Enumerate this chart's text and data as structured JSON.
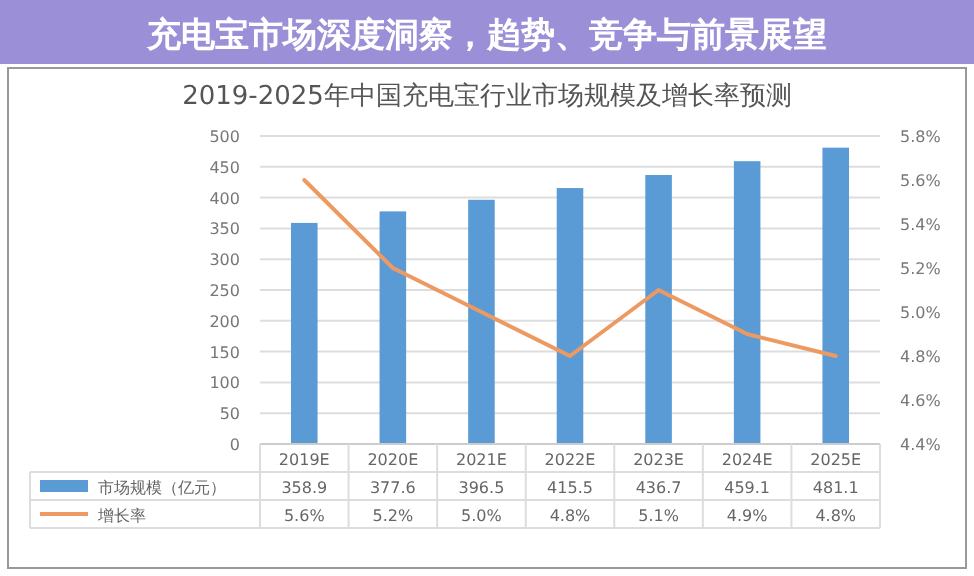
{
  "chart_data": {
    "type": "bar",
    "title": "充电宝市场深度洞察，趋势、竞争与前景展望",
    "subtitle": "2019-2025年中国充电宝行业市场规模及增长率预测",
    "categories": [
      "2019E",
      "2020E",
      "2021E",
      "2022E",
      "2023E",
      "2024E",
      "2025E"
    ],
    "series": [
      {
        "name": "市场规模（亿元）",
        "color": "#5b9bd5",
        "values": [
          358.9,
          377.6,
          396.5,
          415.5,
          436.7,
          459.1,
          481.1
        ],
        "value_labels": [
          "358.9",
          "377.6",
          "396.5",
          "415.5",
          "436.7",
          "459.1",
          "481.1"
        ]
      },
      {
        "name": "增长率",
        "type": "line",
        "axis": "y2",
        "color": "#ed9a62",
        "values": [
          5.6,
          5.2,
          5.0,
          4.8,
          5.1,
          4.9,
          4.8
        ],
        "value_labels": [
          "5.6%",
          "5.2%",
          "5.0%",
          "4.8%",
          "5.1%",
          "4.9%",
          "4.8%"
        ]
      }
    ],
    "ylim": [
      0,
      500
    ],
    "yticks": [
      0,
      50,
      100,
      150,
      200,
      250,
      300,
      350,
      400,
      450,
      500
    ],
    "y2lim": [
      4.4,
      5.8
    ],
    "y2ticks": [
      {
        "value": 4.4,
        "label": "4.4%"
      },
      {
        "value": 4.6,
        "label": "4.6%"
      },
      {
        "value": 4.8,
        "label": "4.8%"
      },
      {
        "value": 5.0,
        "label": "5.0%"
      },
      {
        "value": 5.2,
        "label": "5.2%"
      },
      {
        "value": 5.4,
        "label": "5.4%"
      },
      {
        "value": 5.6,
        "label": "5.6%"
      },
      {
        "value": 5.8,
        "label": "5.8%"
      }
    ],
    "grid": "y",
    "legend": "bottom"
  }
}
